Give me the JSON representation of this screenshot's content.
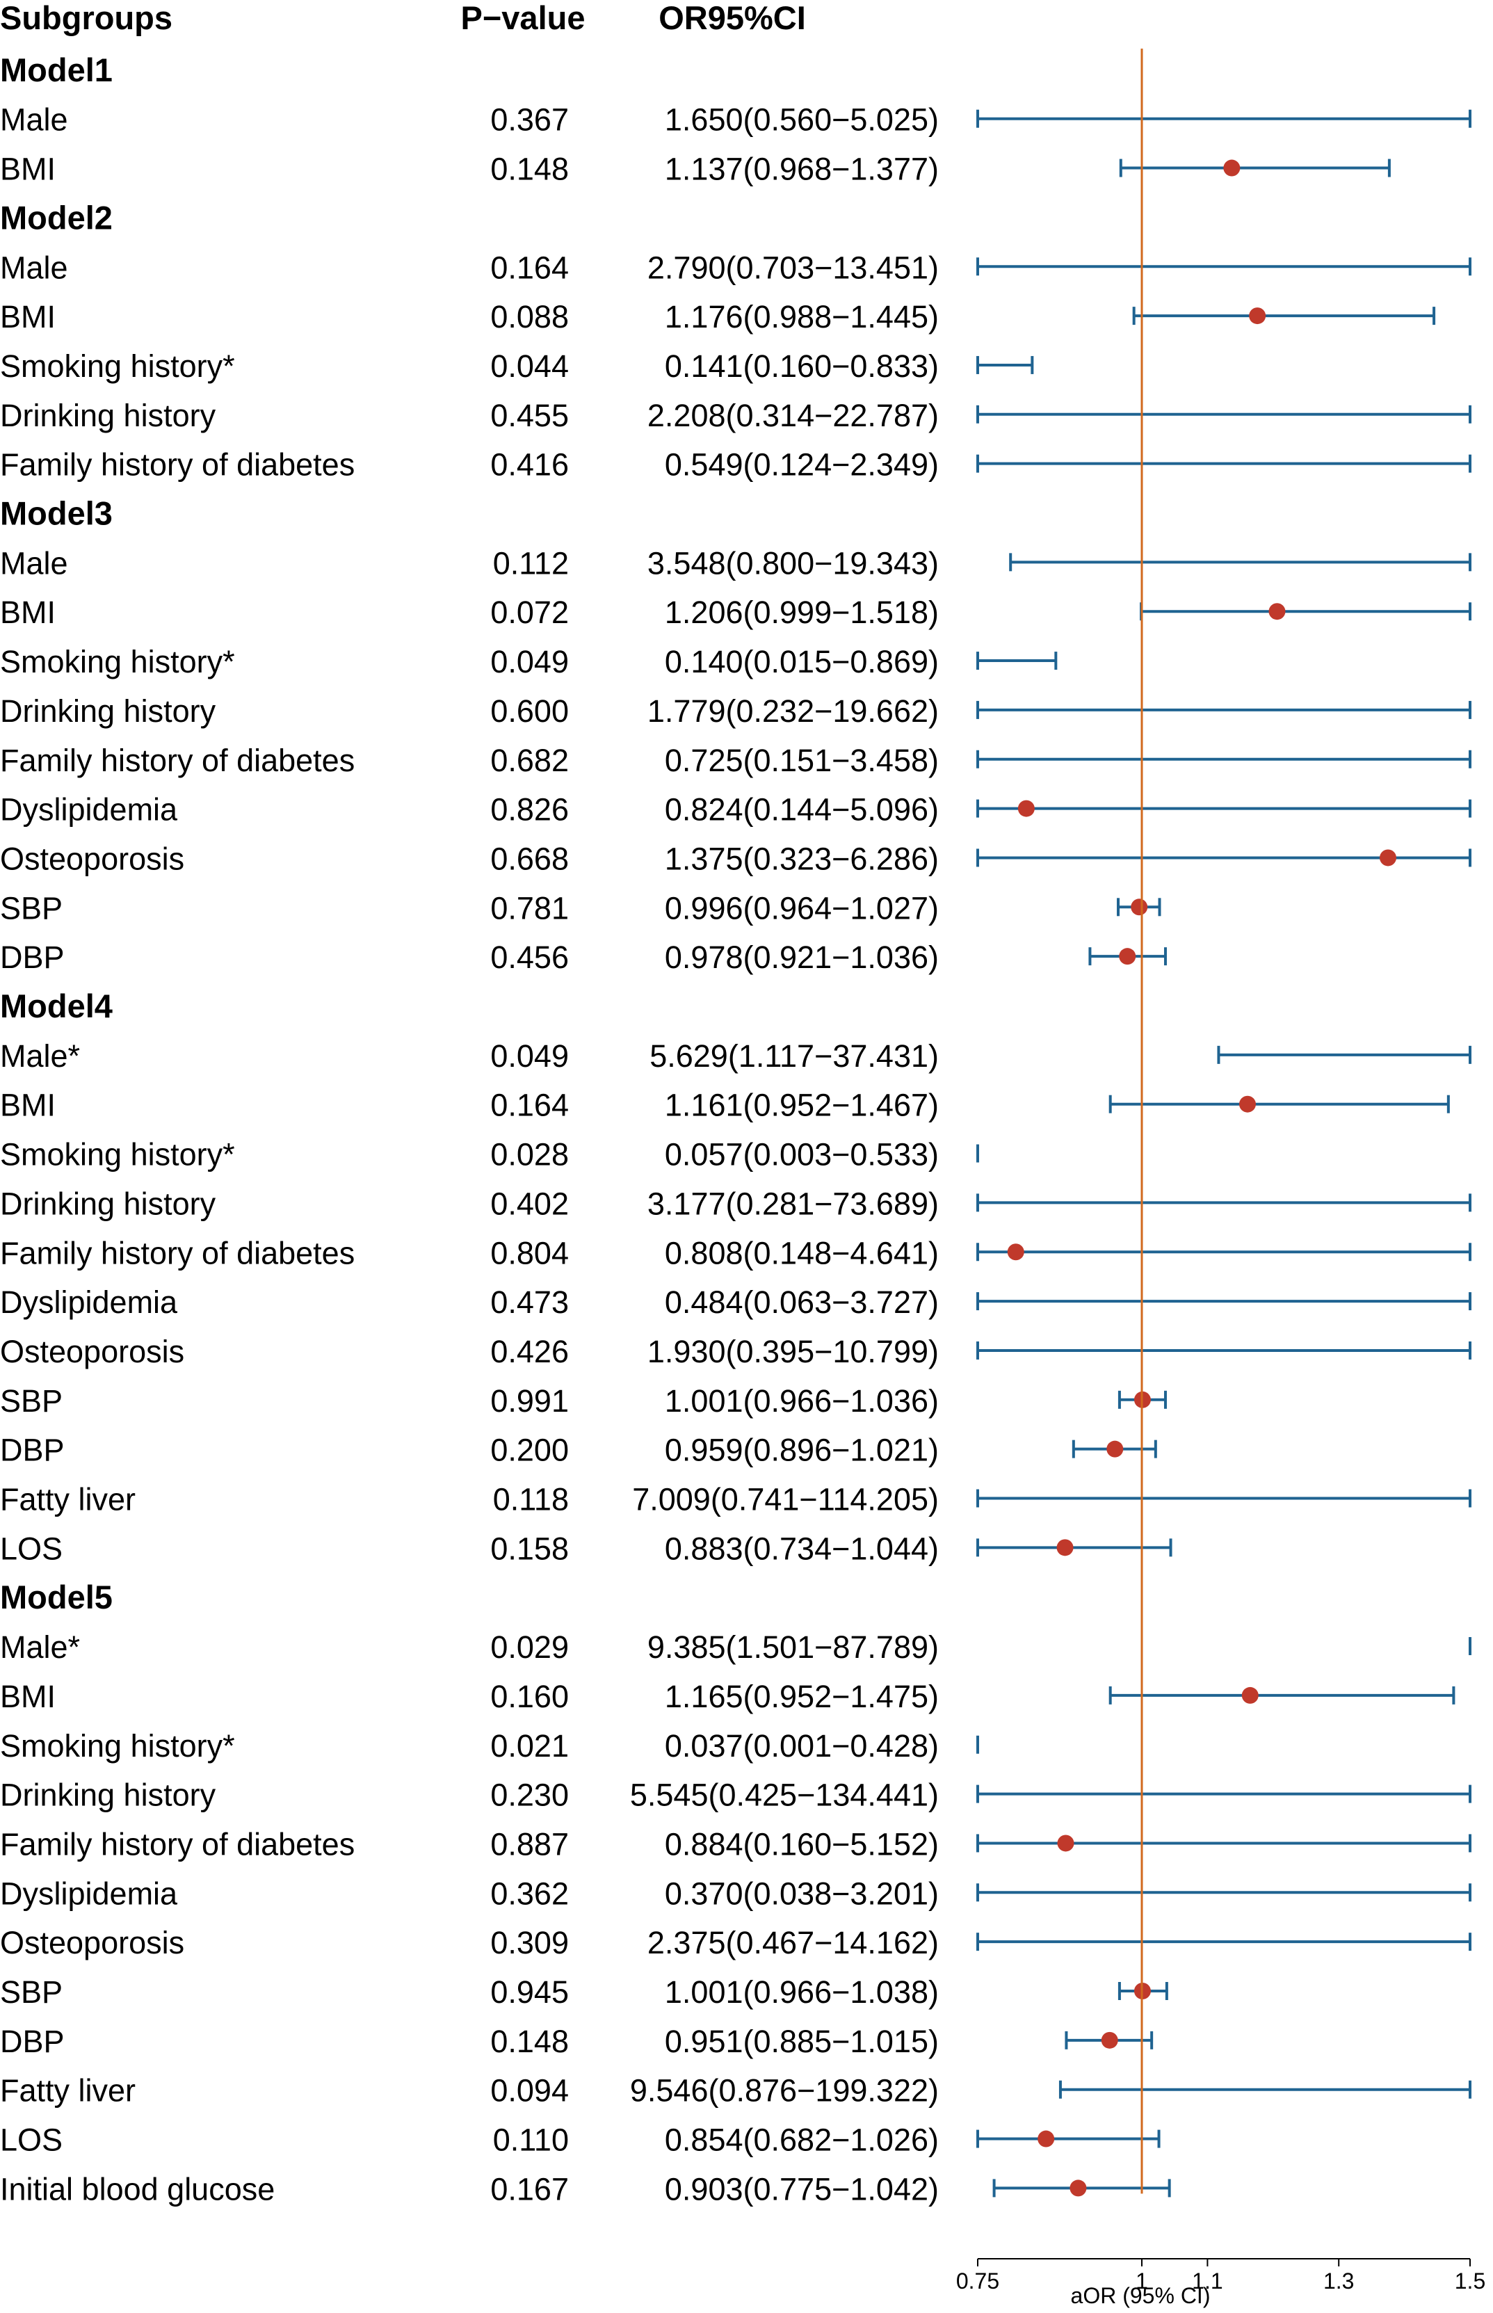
{
  "chart_data": {
    "type": "forest",
    "headers": {
      "subgroups": "Subgroups",
      "pvalue": "P−value",
      "or_ci": "OR95%CI"
    },
    "xlabel": "aOR (95% CI)",
    "xlim": [
      0.75,
      1.5
    ],
    "xticks": [
      {
        "value": 0.75,
        "label": "0.75"
      },
      {
        "value": 1.0,
        "label": "1"
      },
      {
        "value": 1.1,
        "label": "1.1"
      },
      {
        "value": 1.3,
        "label": "1.3"
      },
      {
        "value": 1.5,
        "label": "1.5"
      }
    ],
    "reference_line": 1,
    "colors": {
      "ci_line": "#1f6391",
      "point": "#c0392b",
      "reference": "#d2691e",
      "axis": "#000000",
      "text": "#000000"
    },
    "rows": [
      {
        "type": "group",
        "label": "Model1"
      },
      {
        "label": "Male",
        "p": "0.367",
        "ci_text": "1.650(0.560−5.025)",
        "or": 1.65,
        "lo": 0.56,
        "hi": 5.025
      },
      {
        "label": "BMI",
        "p": "0.148",
        "ci_text": "1.137(0.968−1.377)",
        "or": 1.137,
        "lo": 0.968,
        "hi": 1.377
      },
      {
        "type": "group",
        "label": "Model2"
      },
      {
        "label": "Male",
        "p": "0.164",
        "ci_text": "2.790(0.703−13.451)",
        "or": 2.79,
        "lo": 0.703,
        "hi": 13.451
      },
      {
        "label": "BMI",
        "p": "0.088",
        "ci_text": "1.176(0.988−1.445)",
        "or": 1.176,
        "lo": 0.988,
        "hi": 1.445
      },
      {
        "label": "Smoking history*",
        "p": "0.044",
        "ci_text": "0.141(0.160−0.833)",
        "or": 0.141,
        "lo": 0.16,
        "hi": 0.833
      },
      {
        "label": "Drinking history",
        "p": "0.455",
        "ci_text": "2.208(0.314−22.787)",
        "or": 2.208,
        "lo": 0.314,
        "hi": 22.787
      },
      {
        "label": "Family history of diabetes",
        "p": "0.416",
        "ci_text": "0.549(0.124−2.349)",
        "or": 0.549,
        "lo": 0.124,
        "hi": 2.349
      },
      {
        "type": "group",
        "label": "Model3"
      },
      {
        "label": "Male",
        "p": "0.112",
        "ci_text": "3.548(0.800−19.343)",
        "or": 3.548,
        "lo": 0.8,
        "hi": 19.343
      },
      {
        "label": "BMI",
        "p": "0.072",
        "ci_text": "1.206(0.999−1.518)",
        "or": 1.206,
        "lo": 0.999,
        "hi": 1.518
      },
      {
        "label": "Smoking history*",
        "p": "0.049",
        "ci_text": "0.140(0.015−0.869)",
        "or": 0.14,
        "lo": 0.015,
        "hi": 0.869
      },
      {
        "label": "Drinking history",
        "p": "0.600",
        "ci_text": "1.779(0.232−19.662)",
        "or": 1.779,
        "lo": 0.232,
        "hi": 19.662
      },
      {
        "label": "Family history of diabetes",
        "p": "0.682",
        "ci_text": "0.725(0.151−3.458)",
        "or": 0.725,
        "lo": 0.151,
        "hi": 3.458
      },
      {
        "label": "Dyslipidemia",
        "p": "0.826",
        "ci_text": "0.824(0.144−5.096)",
        "or": 0.824,
        "lo": 0.144,
        "hi": 5.096
      },
      {
        "label": "Osteoporosis",
        "p": "0.668",
        "ci_text": "1.375(0.323−6.286)",
        "or": 1.375,
        "lo": 0.323,
        "hi": 6.286
      },
      {
        "label": "SBP",
        "p": "0.781",
        "ci_text": "0.996(0.964−1.027)",
        "or": 0.996,
        "lo": 0.964,
        "hi": 1.027
      },
      {
        "label": "DBP",
        "p": "0.456",
        "ci_text": "0.978(0.921−1.036)",
        "or": 0.978,
        "lo": 0.921,
        "hi": 1.036
      },
      {
        "type": "group",
        "label": "Model4"
      },
      {
        "label": "Male*",
        "p": "0.049",
        "ci_text": "5.629(1.117−37.431)",
        "or": 5.629,
        "lo": 1.117,
        "hi": 37.431
      },
      {
        "label": "BMI",
        "p": "0.164",
        "ci_text": "1.161(0.952−1.467)",
        "or": 1.161,
        "lo": 0.952,
        "hi": 1.467
      },
      {
        "label": "Smoking history*",
        "p": "0.028",
        "ci_text": "0.057(0.003−0.533)",
        "or": 0.057,
        "lo": 0.003,
        "hi": 0.533
      },
      {
        "label": "Drinking history",
        "p": "0.402",
        "ci_text": "3.177(0.281−73.689)",
        "or": 3.177,
        "lo": 0.281,
        "hi": 73.689
      },
      {
        "label": "Family history of diabetes",
        "p": "0.804",
        "ci_text": "0.808(0.148−4.641)",
        "or": 0.808,
        "lo": 0.148,
        "hi": 4.641
      },
      {
        "label": "Dyslipidemia",
        "p": "0.473",
        "ci_text": "0.484(0.063−3.727)",
        "or": 0.484,
        "lo": 0.063,
        "hi": 3.727
      },
      {
        "label": "Osteoporosis",
        "p": "0.426",
        "ci_text": "1.930(0.395−10.799)",
        "or": 1.93,
        "lo": 0.395,
        "hi": 10.799
      },
      {
        "label": "SBP",
        "p": "0.991",
        "ci_text": "1.001(0.966−1.036)",
        "or": 1.001,
        "lo": 0.966,
        "hi": 1.036
      },
      {
        "label": "DBP",
        "p": "0.200",
        "ci_text": "0.959(0.896−1.021)",
        "or": 0.959,
        "lo": 0.896,
        "hi": 1.021
      },
      {
        "label": "Fatty liver",
        "p": "0.118",
        "ci_text": "7.009(0.741−114.205)",
        "or": 7.009,
        "lo": 0.741,
        "hi": 114.205
      },
      {
        "label": "LOS",
        "p": "0.158",
        "ci_text": "0.883(0.734−1.044)",
        "or": 0.883,
        "lo": 0.734,
        "hi": 1.044
      },
      {
        "type": "group",
        "label": "Model5"
      },
      {
        "label": "Male*",
        "p": "0.029",
        "ci_text": "9.385(1.501−87.789)",
        "or": 9.385,
        "lo": 1.501,
        "hi": 87.789
      },
      {
        "label": "BMI",
        "p": "0.160",
        "ci_text": "1.165(0.952−1.475)",
        "or": 1.165,
        "lo": 0.952,
        "hi": 1.475
      },
      {
        "label": "Smoking history*",
        "p": "0.021",
        "ci_text": "0.037(0.001−0.428)",
        "or": 0.037,
        "lo": 0.001,
        "hi": 0.428
      },
      {
        "label": "Drinking history",
        "p": "0.230",
        "ci_text": "5.545(0.425−134.441)",
        "or": 5.545,
        "lo": 0.425,
        "hi": 134.441
      },
      {
        "label": "Family history of diabetes",
        "p": "0.887",
        "ci_text": "0.884(0.160−5.152)",
        "or": 0.884,
        "lo": 0.16,
        "hi": 5.152
      },
      {
        "label": "Dyslipidemia",
        "p": "0.362",
        "ci_text": "0.370(0.038−3.201)",
        "or": 0.37,
        "lo": 0.038,
        "hi": 3.201
      },
      {
        "label": "Osteoporosis",
        "p": "0.309",
        "ci_text": "2.375(0.467−14.162)",
        "or": 2.375,
        "lo": 0.467,
        "hi": 14.162
      },
      {
        "label": "SBP",
        "p": "0.945",
        "ci_text": "1.001(0.966−1.038)",
        "or": 1.001,
        "lo": 0.966,
        "hi": 1.038
      },
      {
        "label": "DBP",
        "p": "0.148",
        "ci_text": "0.951(0.885−1.015)",
        "or": 0.951,
        "lo": 0.885,
        "hi": 1.015
      },
      {
        "label": "Fatty liver",
        "p": "0.094",
        "ci_text": "9.546(0.876−199.322)",
        "or": 9.546,
        "lo": 0.876,
        "hi": 199.322
      },
      {
        "label": "LOS",
        "p": "0.110",
        "ci_text": "0.854(0.682−1.026)",
        "or": 0.854,
        "lo": 0.682,
        "hi": 1.026
      },
      {
        "label": "Initial blood glucose",
        "p": "0.167",
        "ci_text": "0.903(0.775−1.042)",
        "or": 0.903,
        "lo": 0.775,
        "hi": 1.042
      }
    ]
  }
}
